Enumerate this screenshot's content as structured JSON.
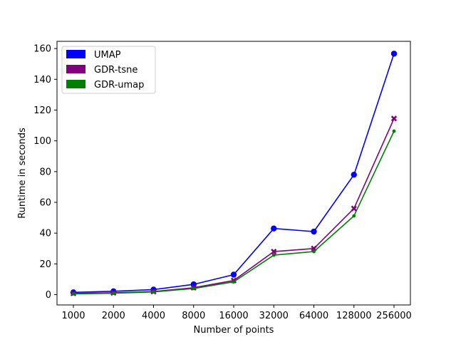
{
  "chart_data": {
    "type": "line",
    "title": "",
    "xlabel": "Number of points",
    "ylabel": "Runtime in seconds",
    "categories": [
      "1000",
      "2000",
      "4000",
      "8000",
      "16000",
      "32000",
      "64000",
      "128000",
      "256000"
    ],
    "yticks": [
      0,
      20,
      40,
      60,
      80,
      100,
      120,
      140,
      160
    ],
    "ylim": [
      -6.7,
      164.7
    ],
    "grid": false,
    "legend_position": "top-left",
    "series": [
      {
        "name": "UMAP",
        "color": "#0000ff",
        "marker": "circle",
        "values": [
          1.5,
          2.2,
          3.3,
          6.7,
          13.0,
          43.0,
          41.0,
          78.0,
          156.7
        ]
      },
      {
        "name": "GDR-tsne",
        "color": "#800080",
        "marker": "x",
        "values": [
          0.8,
          1.2,
          2.0,
          4.5,
          9.2,
          28.0,
          30.0,
          56.0,
          114.5
        ]
      },
      {
        "name": "GDR-umap",
        "color": "#008000",
        "marker": "dot",
        "values": [
          0.5,
          0.9,
          1.8,
          4.0,
          8.3,
          25.7,
          28.0,
          51.2,
          106.3
        ]
      }
    ]
  }
}
